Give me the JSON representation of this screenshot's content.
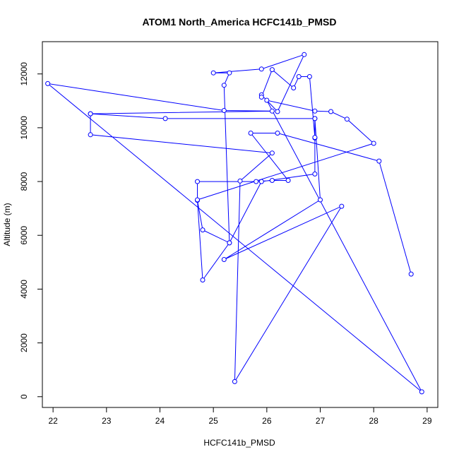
{
  "chart_data": {
    "type": "line",
    "title": "ATOM1 North_America HCFC141b_PMSD",
    "xlabel": "HCFC141b_PMSD",
    "ylabel": "Altitude (m)",
    "xlim": [
      21.8,
      29.2
    ],
    "ylim": [
      -400,
      13200
    ],
    "x_ticks": [
      22,
      23,
      24,
      25,
      26,
      27,
      28,
      29
    ],
    "y_ticks": [
      0,
      2000,
      4000,
      6000,
      8000,
      10000,
      12000
    ],
    "grid": false,
    "colors": {
      "series": "#0000ff",
      "axis": "#000000"
    },
    "series": [
      {
        "x": [
          28.7,
          28.1,
          26.2,
          25.7,
          26.4,
          26.1,
          25.8,
          24.7,
          24.7,
          24.8,
          25.3,
          25.9,
          26.9,
          26.9,
          26.9,
          27.0,
          25.2,
          27.4,
          25.4,
          25.5,
          26.1,
          22.7,
          22.7,
          26.1,
          25.2,
          21.9,
          28.9,
          26.0,
          26.9,
          27.2,
          27.5,
          28.0,
          24.7,
          24.8,
          25.3,
          25.2,
          25.3,
          25.0,
          25.9,
          26.7,
          26.2,
          25.9,
          25.9,
          26.1,
          26.5,
          26.6,
          26.8,
          26.9,
          26.9,
          24.1,
          22.7
        ],
        "y": [
          4560,
          8760,
          9800,
          9800,
          8040,
          8040,
          8000,
          8000,
          7300,
          6200,
          5720,
          8000,
          8280,
          9620,
          10340,
          7320,
          5100,
          7080,
          560,
          8020,
          9060,
          9740,
          10520,
          10620,
          10640,
          11640,
          180,
          11020,
          10620,
          10600,
          10320,
          9420,
          7320,
          4340,
          5720,
          11580,
          12040,
          12040,
          12180,
          12720,
          10600,
          11220,
          11140,
          12160,
          11480,
          11900,
          11900,
          9640,
          10340,
          10340,
          10520
        ]
      }
    ]
  }
}
